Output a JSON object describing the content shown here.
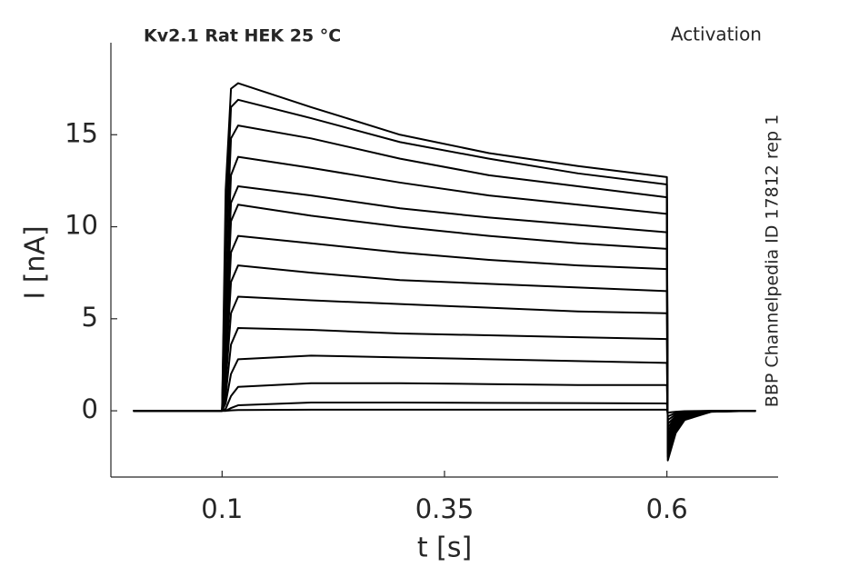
{
  "chart_data": {
    "type": "line",
    "title": "Kv2.1  Rat  HEK  25 °C",
    "annotations": [
      "Activation",
      "BBP Channelpedia ID 17812 rep 1"
    ],
    "xlabel": "t [s]",
    "ylabel": "I [nA]",
    "color": "#000000",
    "x": [
      0,
      0.1,
      0.104,
      0.11,
      0.118,
      0.2,
      0.3,
      0.4,
      0.5,
      0.6,
      0.601,
      0.61,
      0.62,
      0.65,
      0.7
    ],
    "series": [
      {
        "values": [
          0,
          0,
          12,
          17.5,
          17.8,
          16.5,
          15.0,
          14.0,
          13.3,
          12.7,
          -2.7,
          -1.2,
          -0.5,
          -0.05,
          0
        ]
      },
      {
        "values": [
          0,
          0,
          10,
          16.5,
          16.9,
          15.9,
          14.6,
          13.7,
          12.9,
          12.3,
          -2.5,
          -1.1,
          -0.45,
          -0.05,
          0
        ]
      },
      {
        "values": [
          0,
          0,
          8,
          14.8,
          15.5,
          14.8,
          13.7,
          12.8,
          12.2,
          11.6,
          -2.3,
          -1.0,
          -0.4,
          -0.04,
          0
        ]
      },
      {
        "values": [
          0,
          0,
          6,
          12.8,
          13.8,
          13.2,
          12.4,
          11.7,
          11.2,
          10.7,
          -2.1,
          -0.9,
          -0.35,
          -0.04,
          0
        ]
      },
      {
        "values": [
          0,
          0,
          5,
          11.3,
          12.2,
          11.7,
          11.0,
          10.5,
          10.1,
          9.7,
          -1.9,
          -0.8,
          -0.3,
          -0.03,
          0
        ]
      },
      {
        "values": [
          0,
          0,
          4,
          10.3,
          11.2,
          10.6,
          10.0,
          9.5,
          9.1,
          8.8,
          -1.7,
          -0.7,
          -0.28,
          -0.03,
          0
        ]
      },
      {
        "values": [
          0,
          0,
          3,
          8.6,
          9.5,
          9.1,
          8.6,
          8.2,
          7.9,
          7.7,
          -1.5,
          -0.6,
          -0.25,
          -0.03,
          0
        ]
      },
      {
        "values": [
          0,
          0,
          2.2,
          7.0,
          7.9,
          7.5,
          7.1,
          6.9,
          6.7,
          6.5,
          -1.3,
          -0.5,
          -0.2,
          -0.02,
          0
        ]
      },
      {
        "values": [
          0,
          0,
          1.5,
          5.3,
          6.2,
          6.0,
          5.8,
          5.6,
          5.4,
          5.3,
          -1.1,
          -0.4,
          -0.17,
          -0.02,
          0
        ]
      },
      {
        "values": [
          0,
          0,
          0.8,
          3.6,
          4.5,
          4.4,
          4.2,
          4.1,
          4.0,
          3.9,
          -0.9,
          -0.35,
          -0.14,
          -0.01,
          0
        ]
      },
      {
        "values": [
          0,
          0,
          0.4,
          2.0,
          2.8,
          3.0,
          2.9,
          2.8,
          2.7,
          2.6,
          -0.7,
          -0.3,
          -0.1,
          -0.01,
          0
        ]
      },
      {
        "values": [
          0,
          0,
          0.1,
          0.8,
          1.3,
          1.5,
          1.5,
          1.45,
          1.4,
          1.4,
          -0.5,
          -0.2,
          -0.08,
          -0.01,
          0
        ]
      },
      {
        "values": [
          0,
          0,
          0,
          0.15,
          0.3,
          0.45,
          0.45,
          0.43,
          0.42,
          0.4,
          -0.3,
          -0.12,
          -0.05,
          0,
          0
        ]
      },
      {
        "values": [
          0,
          0,
          0,
          0.02,
          0.04,
          0.06,
          0.06,
          0.06,
          0.06,
          0.06,
          -0.1,
          -0.05,
          -0.02,
          0,
          0
        ]
      }
    ],
    "xlim": [
      -0.025,
      0.725
    ],
    "ylim": [
      -3.6,
      20
    ],
    "xticks": [
      0.1,
      0.35,
      0.6
    ],
    "yticks": [
      0,
      5,
      10,
      15
    ]
  }
}
